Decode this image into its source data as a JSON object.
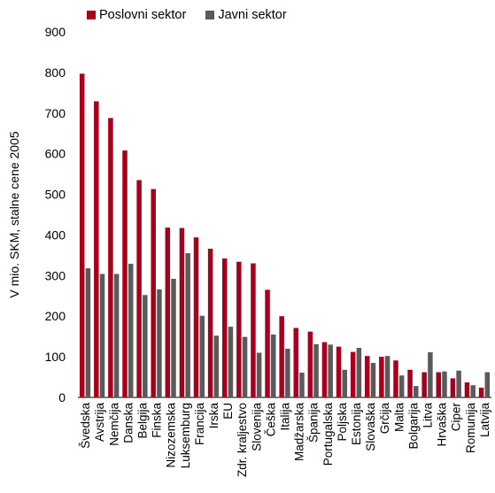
{
  "chart_data": {
    "type": "bar",
    "ylabel": "V mio. SKM, stalne cene 2005",
    "ylim": [
      0,
      900
    ],
    "yticks": [
      "0",
      "100",
      "200",
      "300",
      "400",
      "500",
      "600",
      "700",
      "800",
      "900"
    ],
    "legend_position": "top",
    "grid": false,
    "categories": [
      "Švedska",
      "Avstrija",
      "Nemčija",
      "Danska",
      "Belgija",
      "Finska",
      "Nizozemska",
      "Luksemburg",
      "Francija",
      "Irska",
      "EU",
      "Zdr. kraljestvo",
      "Slovenija",
      "Češka",
      "Italija",
      "Madžarska",
      "Španija",
      "Portugalska",
      "Poljska",
      "Estonija",
      "Slovaška",
      "Grčija",
      "Malta",
      "Bolgarija",
      "Litva",
      "Hrvaška",
      "Ciper",
      "Romunija",
      "Latvija"
    ],
    "series": [
      {
        "name": "Poslovni sektor",
        "color": "#a6001c",
        "values": [
          797,
          729,
          688,
          608,
          535,
          513,
          418,
          417,
          394,
          366,
          342,
          334,
          330,
          265,
          200,
          171,
          162,
          136,
          125,
          112,
          102,
          100,
          91,
          68,
          62,
          62,
          47,
          37,
          24
        ]
      },
      {
        "name": "Javni sektor",
        "color": "#5a5a5a",
        "values": [
          318,
          304,
          304,
          329,
          252,
          266,
          292,
          355,
          201,
          152,
          174,
          149,
          110,
          155,
          120,
          61,
          131,
          130,
          68,
          122,
          85,
          102,
          54,
          28,
          111,
          64,
          66,
          30,
          62
        ]
      }
    ]
  }
}
